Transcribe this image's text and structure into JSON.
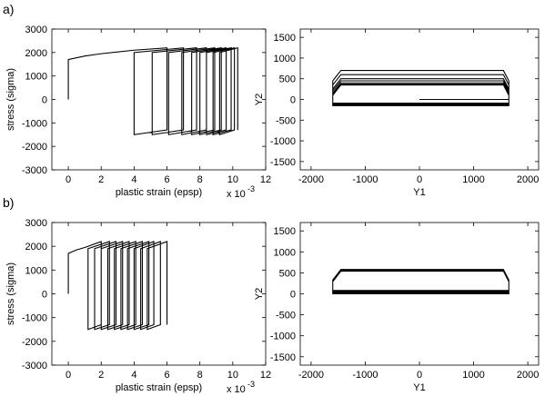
{
  "chart_data": [
    {
      "type": "line",
      "panel_label": "a)",
      "xlabel": "plastic strain (epsp)",
      "ylabel": "stress (sigma)",
      "x_multiplier": "x 10",
      "x_multiplier_exponent": "-3",
      "xlim": [
        -1,
        12
      ],
      "ylim": [
        -3000,
        3000
      ],
      "xticks": [
        0,
        2,
        4,
        6,
        8,
        10,
        12
      ],
      "yticks": [
        -3000,
        -2000,
        -1000,
        0,
        1000,
        2000,
        3000
      ],
      "series": [
        {
          "color": "#000000",
          "x": [
            0,
            0,
            1,
            2,
            4,
            6,
            6,
            4,
            4,
            7,
            7,
            5.1,
            5.1,
            7.8,
            7.8,
            6.1,
            6.1,
            8.4,
            8.4,
            6.9,
            6.9,
            8.9,
            8.9,
            7.5,
            7.5,
            9.3,
            9.3,
            8,
            8,
            9.6,
            9.6,
            8.4,
            8.4,
            9.9,
            9.9,
            8.8,
            8.8,
            10.1,
            10.1,
            9.2,
            9.2,
            10.3,
            10.3
          ],
          "values": [
            0,
            1700,
            1850,
            1950,
            2100,
            2200,
            -1300,
            -1500,
            2000,
            2200,
            -1300,
            -1500,
            2000,
            2200,
            -1300,
            -1500,
            2000,
            2200,
            -1300,
            -1500,
            2000,
            2200,
            -1300,
            -1500,
            2000,
            2200,
            -1300,
            -1500,
            2000,
            2200,
            -1300,
            -1500,
            2000,
            2200,
            -1300,
            -1500,
            2000,
            2200,
            -1300,
            -1500,
            2000,
            2200,
            -1300
          ]
        }
      ]
    },
    {
      "type": "line",
      "xlabel": "Y1",
      "ylabel": "Y2",
      "xlim": [
        -2200,
        2200
      ],
      "ylim": [
        -1700,
        1700
      ],
      "xticks": [
        -2000,
        -1000,
        0,
        1000,
        2000
      ],
      "yticks": [
        -1500,
        -1000,
        -500,
        0,
        500,
        1000,
        1500
      ],
      "series": [
        {
          "color": "#000000",
          "x": [
            0,
            1650,
            1650,
            1550,
            -1450,
            -1600,
            -1600,
            1650,
            1650,
            1550,
            -1450,
            -1600,
            -1600,
            1650,
            1650,
            1550,
            -1450,
            -1600,
            -1600,
            1650,
            1650,
            1550,
            -1450,
            -1600,
            -1600,
            1650,
            1650,
            1550,
            -1450,
            -1600,
            -1600,
            1650,
            1650,
            1550,
            -1450,
            -1600,
            -1600,
            1650,
            1650,
            1550,
            -1450,
            -1600,
            -1600,
            1650
          ],
          "values": [
            0,
            0,
            450,
            700,
            700,
            450,
            -150,
            -150,
            350,
            600,
            600,
            350,
            -140,
            -140,
            250,
            500,
            500,
            250,
            -130,
            -130,
            200,
            450,
            450,
            200,
            -120,
            -120,
            150,
            400,
            400,
            150,
            -110,
            -110,
            120,
            370,
            370,
            120,
            -100,
            -100,
            100,
            350,
            350,
            100,
            -90,
            -90
          ]
        }
      ]
    },
    {
      "type": "line",
      "panel_label": "b)",
      "xlabel": "plastic strain (epsp)",
      "ylabel": "stress (sigma)",
      "x_multiplier": "x 10",
      "x_multiplier_exponent": "-3",
      "xlim": [
        -1,
        12
      ],
      "ylim": [
        -3000,
        3000
      ],
      "xticks": [
        0,
        2,
        4,
        6,
        8,
        10,
        12
      ],
      "yticks": [
        -3000,
        -2000,
        -1000,
        0,
        1000,
        2000,
        3000
      ],
      "series": [
        {
          "color": "#000000",
          "x": [
            0,
            0,
            0.5,
            1,
            2,
            2,
            1.2,
            1.2,
            2.5,
            2.5,
            1.6,
            1.6,
            2.9,
            2.9,
            2,
            2,
            3.3,
            3.3,
            2.4,
            2.4,
            3.7,
            3.7,
            2.8,
            2.8,
            4.1,
            4.1,
            3.2,
            3.2,
            4.5,
            4.5,
            3.6,
            3.6,
            4.9,
            4.9,
            4,
            4,
            5.2,
            5.2,
            4.4,
            4.4,
            5.6,
            5.6,
            4.8,
            4.8,
            6,
            6
          ],
          "values": [
            0,
            1700,
            1850,
            1950,
            2200,
            -1300,
            -1500,
            1900,
            2200,
            -1300,
            -1500,
            1900,
            2200,
            -1300,
            -1500,
            1900,
            2200,
            -1300,
            -1500,
            1900,
            2200,
            -1300,
            -1500,
            1900,
            2200,
            -1300,
            -1500,
            1900,
            2200,
            -1300,
            -1500,
            1900,
            2200,
            -1300,
            -1500,
            1900,
            2200,
            -1300,
            -1500,
            1900,
            2200,
            -1300,
            -1500,
            1900,
            2200,
            -1300
          ]
        }
      ]
    },
    {
      "type": "line",
      "xlabel": "Y1",
      "ylabel": "Y2",
      "xlim": [
        -2200,
        2200
      ],
      "ylim": [
        -1700,
        1700
      ],
      "xticks": [
        -2000,
        -1000,
        0,
        1000,
        2000
      ],
      "yticks": [
        -1500,
        -1000,
        -500,
        0,
        500,
        1000,
        1500
      ],
      "series": [
        {
          "color": "#000000",
          "x": [
            0,
            1650,
            1650,
            1550,
            -1450,
            -1600,
            -1600,
            1650,
            1650,
            1550,
            -1450,
            -1600,
            -1600,
            1650,
            1650,
            1550,
            -1450,
            -1600,
            -1600,
            1650,
            1650,
            1550,
            -1450,
            -1600,
            -1600,
            1650,
            1650,
            1550,
            -1450,
            -1600,
            -1600,
            1650
          ],
          "values": [
            0,
            0,
            330,
            580,
            580,
            330,
            80,
            80,
            320,
            570,
            570,
            320,
            60,
            60,
            310,
            560,
            560,
            310,
            40,
            40,
            300,
            550,
            550,
            300,
            20,
            20,
            290,
            540,
            540,
            290,
            0,
            0
          ]
        }
      ]
    }
  ]
}
